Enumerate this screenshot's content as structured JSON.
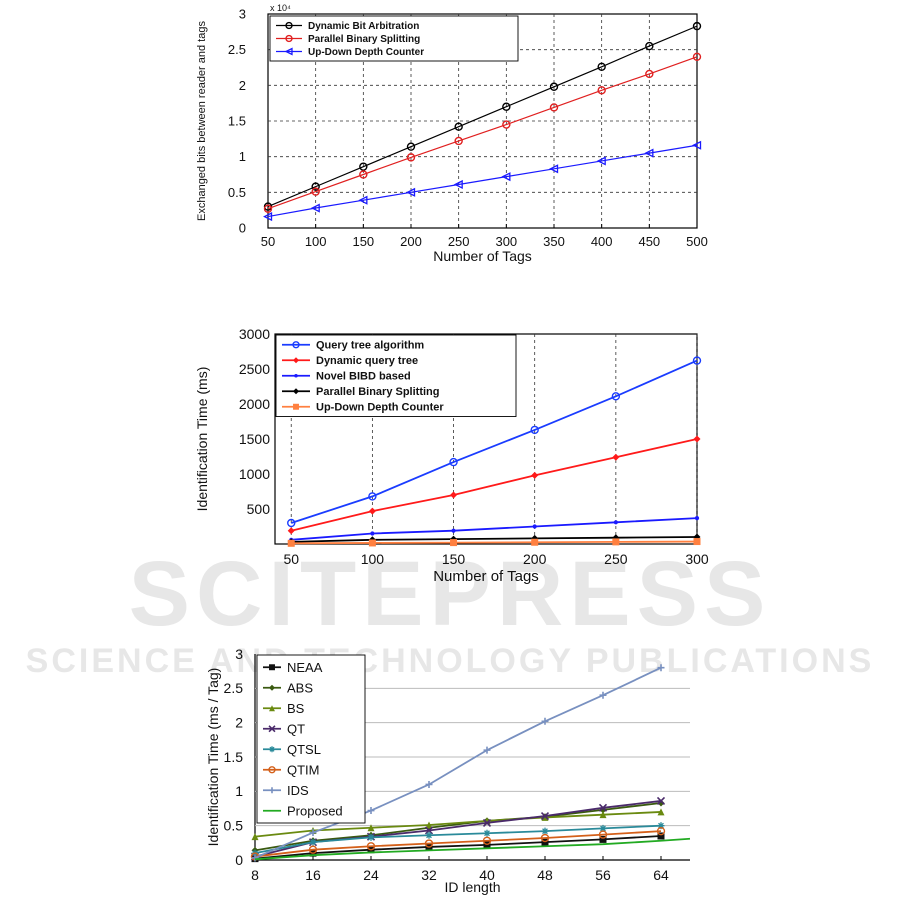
{
  "watermark": {
    "main": "SCITEPRESS",
    "sub": "SCIENCE AND TECHNOLOGY PUBLICATIONS"
  },
  "chart_data": [
    {
      "type": "line",
      "xlabel": "Number of Tags",
      "ylabel": "Exchanged bits between reader and tags",
      "y_multiplier": "x 10⁴",
      "xlim": [
        50,
        500
      ],
      "ylim": [
        0,
        3
      ],
      "xticks": [
        "50",
        "100",
        "150",
        "200",
        "250",
        "300",
        "350",
        "400",
        "450",
        "500"
      ],
      "yticks": [
        "0",
        "0.5",
        "1",
        "1.5",
        "2",
        "2.5",
        "3"
      ],
      "grid": "dashed",
      "legend_position": "top-left",
      "x": [
        50,
        100,
        150,
        200,
        250,
        300,
        350,
        400,
        450,
        500
      ],
      "series": [
        {
          "name": "Dynamic Bit Arbitration",
          "color": "#000000",
          "marker": "circle",
          "values": [
            0.3,
            0.58,
            0.86,
            1.14,
            1.42,
            1.7,
            1.98,
            2.26,
            2.55,
            2.83
          ]
        },
        {
          "name": "Parallel Binary Splitting",
          "color": "#e02020",
          "marker": "circle",
          "values": [
            0.27,
            0.51,
            0.75,
            0.99,
            1.22,
            1.45,
            1.69,
            1.93,
            2.16,
            2.4
          ]
        },
        {
          "name": "Up-Down Depth Counter",
          "color": "#1a1aff",
          "marker": "triangle-left",
          "values": [
            0.16,
            0.28,
            0.39,
            0.5,
            0.61,
            0.72,
            0.83,
            0.94,
            1.05,
            1.16
          ]
        }
      ]
    },
    {
      "type": "line",
      "xlabel": "Number of Tags",
      "ylabel": "Identification Time (ms)",
      "xlim": [
        40,
        300
      ],
      "ylim": [
        0,
        3000
      ],
      "xticks": [
        "50",
        "100",
        "150",
        "200",
        "250",
        "300"
      ],
      "yticks": [
        "500",
        "1000",
        "1500",
        "2000",
        "2500",
        "3000"
      ],
      "grid": "dashed-vertical",
      "legend_position": "top-left",
      "x": [
        50,
        100,
        150,
        200,
        250,
        300
      ],
      "series": [
        {
          "name": "Query tree algorithm",
          "color": "#1a3cff",
          "marker": "circle",
          "values": [
            300,
            680,
            1170,
            1630,
            2110,
            2620
          ]
        },
        {
          "name": "Dynamic query tree",
          "color": "#ff1a1a",
          "marker": "diamond",
          "values": [
            190,
            470,
            700,
            980,
            1240,
            1500
          ]
        },
        {
          "name": "Novel BIBD based",
          "color": "#1a1aff",
          "marker": "dot",
          "values": [
            60,
            150,
            190,
            250,
            310,
            370
          ]
        },
        {
          "name": "Parallel Binary Splitting",
          "color": "#000000",
          "marker": "diamond",
          "values": [
            30,
            60,
            70,
            80,
            90,
            100
          ]
        },
        {
          "name": "Up-Down Depth Counter",
          "color": "#ff8040",
          "marker": "square",
          "values": [
            10,
            15,
            20,
            25,
            30,
            35
          ]
        }
      ]
    },
    {
      "type": "line",
      "xlabel": "ID length",
      "ylabel": "Identification Time (ms / Tag)",
      "xlim": [
        8,
        68
      ],
      "ylim": [
        0,
        3
      ],
      "xticks": [
        "8",
        "16",
        "24",
        "32",
        "40",
        "48",
        "56",
        "64"
      ],
      "yticks": [
        "0",
        "0.5",
        "1",
        "1.5",
        "2",
        "2.5",
        "3"
      ],
      "grid": "horizontal",
      "legend_position": "top-left",
      "x": [
        8,
        16,
        24,
        32,
        40,
        48,
        56,
        64
      ],
      "series": [
        {
          "name": "NEAA",
          "color": "#111111",
          "marker": "square",
          "values": [
            0.02,
            0.1,
            0.15,
            0.19,
            0.22,
            0.26,
            0.3,
            0.35
          ]
        },
        {
          "name": "ABS",
          "color": "#3a5a10",
          "marker": "diamond",
          "values": [
            0.14,
            0.28,
            0.36,
            0.47,
            0.57,
            0.63,
            0.73,
            0.83
          ]
        },
        {
          "name": "BS",
          "color": "#6a8a10",
          "marker": "triangle",
          "values": [
            0.34,
            0.43,
            0.47,
            0.51,
            0.57,
            0.62,
            0.66,
            0.7
          ]
        },
        {
          "name": "QT",
          "color": "#4a2a6a",
          "marker": "x",
          "values": [
            0.05,
            0.26,
            0.34,
            0.43,
            0.54,
            0.64,
            0.76,
            0.86
          ]
        },
        {
          "name": "QTSL",
          "color": "#2a8a9a",
          "marker": "star",
          "values": [
            0.1,
            0.26,
            0.33,
            0.36,
            0.39,
            0.42,
            0.46,
            0.5
          ]
        },
        {
          "name": "QTIM",
          "color": "#d4601a",
          "marker": "circle",
          "values": [
            0.05,
            0.15,
            0.2,
            0.24,
            0.28,
            0.32,
            0.37,
            0.42
          ]
        },
        {
          "name": "IDS",
          "color": "#7890c0",
          "marker": "plus",
          "values": [
            0.03,
            0.4,
            0.72,
            1.1,
            1.6,
            2.02,
            2.4,
            2.8
          ]
        },
        {
          "name": "Proposed",
          "color": "#22aa22",
          "marker": "none",
          "values": [
            0.01,
            0.07,
            0.11,
            0.14,
            0.17,
            0.2,
            0.23,
            0.28
          ]
        }
      ]
    }
  ]
}
